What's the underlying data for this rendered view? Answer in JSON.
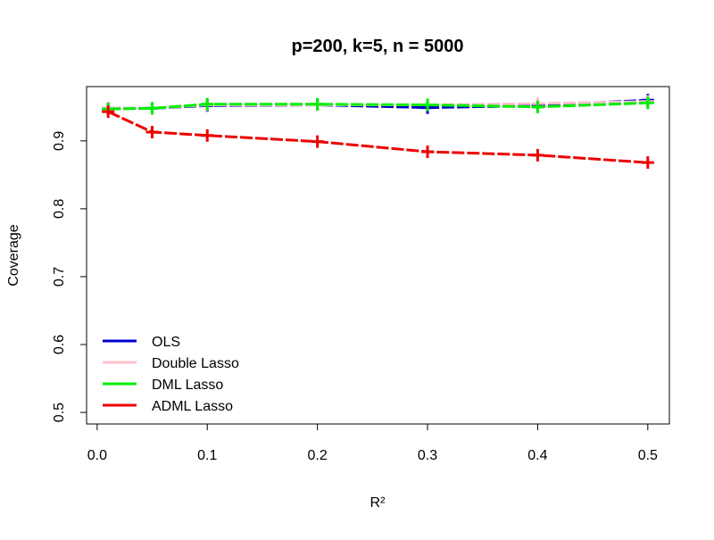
{
  "chart_data": {
    "type": "line",
    "title": "p=200, k=5, n = 5000",
    "x_label": "R²",
    "y_label": "Coverage",
    "x": [
      0.01,
      0.05,
      0.1,
      0.2,
      0.3,
      0.4,
      0.5
    ],
    "series": [
      {
        "name": "OLS",
        "color": "#0000cd",
        "values": [
          0.948,
          0.948,
          0.952,
          0.953,
          0.949,
          0.952,
          0.96
        ]
      },
      {
        "name": "Double Lasso",
        "color": "#ffc0cb",
        "values": [
          0.948,
          0.948,
          0.953,
          0.953,
          0.953,
          0.955,
          0.958
        ]
      },
      {
        "name": "DML Lasso",
        "color": "#00ee00",
        "values": [
          0.947,
          0.948,
          0.954,
          0.954,
          0.953,
          0.95,
          0.956
        ]
      },
      {
        "name": "ADML Lasso",
        "color": "#ee0000",
        "values": [
          0.943,
          0.913,
          0.908,
          0.899,
          0.884,
          0.879,
          0.868
        ]
      }
    ],
    "xlim": [
      -0.0096,
      0.5196
    ],
    "ylim": [
      0.483,
      0.98
    ],
    "xticks": [
      {
        "value": 0,
        "label": "0.0"
      },
      0.1,
      0.2,
      0.3,
      0.4,
      0.5
    ],
    "yticks": [
      0.5,
      0.6,
      0.7,
      0.8,
      0.9
    ],
    "legend": "bottom-left"
  }
}
